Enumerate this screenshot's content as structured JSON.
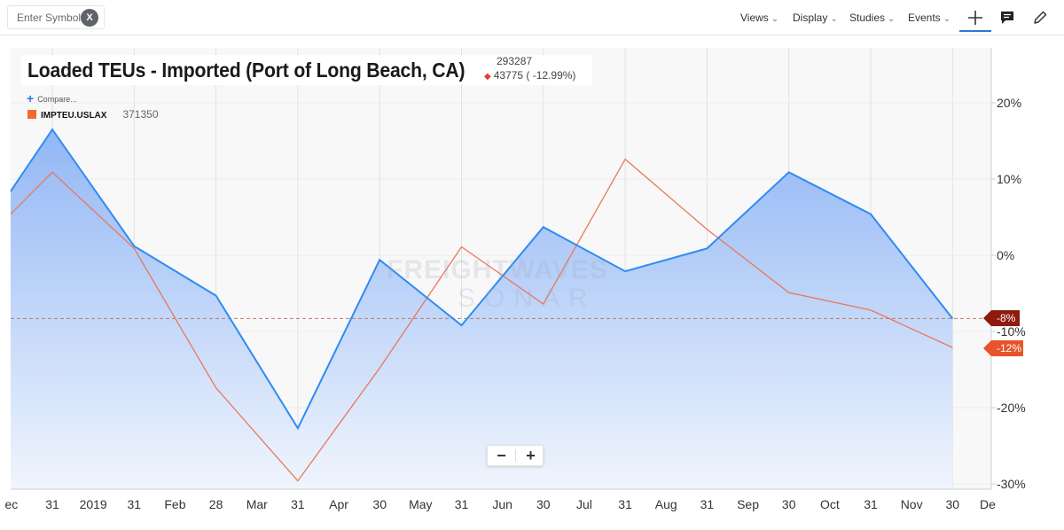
{
  "toolbar": {
    "symbol_placeholder": "Enter Symbol",
    "clear_label": "X",
    "menus": [
      "Views",
      "Display",
      "Studies",
      "Events"
    ]
  },
  "header": {
    "title": "Loaded TEUs - Imported (Port of Long Beach, CA)",
    "last_value": "293287",
    "change": "43775 ( -12.99%)",
    "compare_label": "Compare...",
    "legend": {
      "name": "IMPTEU.USLAX",
      "value": "371350",
      "color": "#f06a2c"
    }
  },
  "zoom": {
    "out_label": "−",
    "in_label": "+"
  },
  "watermark": {
    "line1": "FREIGHTWAVES",
    "line2": "SONAR"
  },
  "flags": {
    "main": "-8%",
    "compare": "-12%"
  },
  "colors": {
    "main_line": "#2f8cf0",
    "compare_line": "#e8785a",
    "fill_top": "#8fb5f5",
    "fill_bottom": "#f0f5fd"
  },
  "chart_data": {
    "type": "area",
    "y_axis_side": "right",
    "yticks": [
      20,
      10,
      0,
      -10,
      -20,
      -30
    ],
    "ytick_labels": [
      "20%",
      "10%",
      "0%",
      "-10%",
      "-20%",
      "-30%"
    ],
    "ylim": [
      -30.5,
      27
    ],
    "xlim": [
      -0.5,
      11.43
    ],
    "x_tick_labels": [
      "ec",
      "31",
      "2019",
      "31",
      "Feb",
      "28",
      "Mar",
      "31",
      "Apr",
      "30",
      "May",
      "31",
      "Jun",
      "30",
      "Jul",
      "31",
      "Aug",
      "31",
      "Sep",
      "30",
      "Oct",
      "31",
      "Nov",
      "30",
      "De"
    ],
    "x_tick_positions": [
      -0.5,
      0,
      0.5,
      1,
      1.5,
      2,
      2.5,
      3,
      3.5,
      4,
      4.5,
      5,
      5.5,
      6,
      6.5,
      7,
      7.5,
      8,
      8.5,
      9,
      9.5,
      10,
      10.5,
      11,
      11.43
    ],
    "x": [
      "2018-12-31",
      "2019-01-31",
      "2019-02-28",
      "2019-03-31",
      "2019-04-30",
      "2019-05-31",
      "2019-06-30",
      "2019-07-31",
      "2019-08-31",
      "2019-09-30",
      "2019-10-31",
      "2019-11-30"
    ],
    "reference_line": -8.3,
    "series": [
      {
        "name": "Loaded TEUs - Imported (Port of Long Beach, CA)",
        "style": "area",
        "values": [
          16.5,
          1.2,
          -5.3,
          -22.7,
          -0.6,
          -9.2,
          3.7,
          -2.1,
          0.9,
          10.9,
          5.4,
          -8.3
        ],
        "start_value": 8.4
      },
      {
        "name": "IMPTEU.USLAX",
        "style": "line",
        "values": [
          10.9,
          0.9,
          -17.4,
          -29.6,
          -14.8,
          1.1,
          -6.4,
          12.6,
          3.4,
          -4.9,
          -7.2,
          -12.1
        ],
        "start_value": 5.4
      }
    ]
  }
}
